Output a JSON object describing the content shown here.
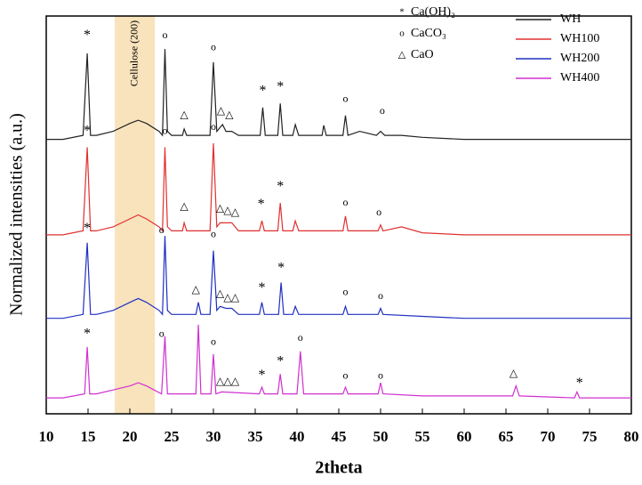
{
  "chart_data": {
    "type": "line",
    "xlabel": "2theta",
    "ylabel": "Normalized intensities (a.u.)",
    "xlim": [
      10,
      80
    ],
    "xticks": [
      10,
      15,
      20,
      25,
      30,
      35,
      40,
      45,
      50,
      55,
      60,
      65,
      70,
      75,
      80
    ],
    "ylim": [
      0,
      100
    ],
    "band": {
      "x0": 18.2,
      "x1": 23,
      "label": "Cellulose (200)",
      "color": "#f7deb0"
    },
    "phase_legend": [
      {
        "symbol": "*",
        "label": "Ca(OH)₂"
      },
      {
        "symbol": "o",
        "label": "CaCO₃"
      },
      {
        "symbol": "△",
        "label": "CaO"
      }
    ],
    "series": [
      {
        "name": "WH",
        "color": "#222222",
        "x": [
          10,
          12,
          14.4,
          14.9,
          15.3,
          16,
          18,
          20,
          21,
          22,
          23.5,
          23.9,
          24.2,
          24.5,
          25,
          26.3,
          26.5,
          26.8,
          28,
          29.6,
          30,
          30.4,
          30.8,
          31.1,
          31.5,
          32.2,
          33,
          35.6,
          35.9,
          36.2,
          37.7,
          38,
          38.3,
          39.5,
          39.8,
          40.2,
          43,
          43.2,
          43.5,
          45.5,
          45.8,
          46.1,
          47.5,
          49.5,
          50,
          50.5,
          52.5,
          55,
          60,
          65,
          70,
          75,
          80
        ],
        "values": [
          69,
          69,
          70,
          90.6,
          70,
          70,
          71,
          73,
          73.8,
          73,
          71,
          70,
          91.7,
          71,
          70,
          70,
          71.6,
          70,
          70,
          70,
          88.4,
          71,
          72,
          72.7,
          71,
          71,
          70,
          70,
          77,
          70,
          70,
          78,
          70,
          70,
          72.7,
          70,
          70,
          72.5,
          70,
          70,
          75,
          70,
          71,
          70,
          71,
          70,
          70,
          69.5,
          69,
          69,
          69,
          69,
          69
        ]
      },
      {
        "name": "WH100",
        "color": "#e03030",
        "x": [
          10,
          12,
          14.4,
          14.9,
          15.3,
          16,
          18,
          20,
          21,
          22,
          23.5,
          23.9,
          24.2,
          24.5,
          25,
          26.3,
          26.5,
          26.8,
          28,
          29.6,
          30,
          30.4,
          30.8,
          31.5,
          32.2,
          33,
          35.5,
          35.8,
          36.1,
          37.7,
          38,
          38.3,
          39.5,
          39.8,
          40.2,
          45.5,
          45.8,
          46.1,
          49.7,
          50,
          50.3,
          52.5,
          55,
          60,
          65,
          70,
          75,
          80
        ],
        "values": [
          45,
          45,
          46,
          67,
          46,
          46,
          47,
          49,
          50,
          49,
          47,
          46,
          67,
          47,
          46,
          46,
          48,
          46,
          46,
          46,
          68,
          47,
          48,
          48,
          48,
          46,
          46,
          48.5,
          46,
          46,
          53,
          46,
          46,
          48.5,
          46,
          46,
          49.7,
          46,
          46,
          47.5,
          46,
          47,
          45.5,
          45,
          45,
          45,
          45,
          45
        ]
      },
      {
        "name": "WH200",
        "color": "#2030c0",
        "x": [
          10,
          12,
          14.4,
          14.9,
          15.3,
          16,
          18,
          20,
          21,
          22,
          23.5,
          23.9,
          24.2,
          24.5,
          25,
          27.9,
          28.2,
          28.5,
          29.6,
          30,
          30.4,
          30.8,
          31.5,
          32.2,
          33,
          35.5,
          35.8,
          36.1,
          37.8,
          38.1,
          38.4,
          39.5,
          39.8,
          40.2,
          45.5,
          45.8,
          46.1,
          49.7,
          50,
          50.3,
          55,
          60,
          65,
          70,
          75,
          80
        ],
        "values": [
          24,
          24,
          25,
          43,
          25,
          25,
          26,
          28,
          29,
          28,
          26,
          25,
          44.7,
          26,
          25,
          25,
          28,
          25,
          25,
          41,
          26,
          27,
          26.5,
          26.5,
          25,
          25,
          28,
          25,
          25,
          33,
          25,
          25,
          27,
          25,
          25,
          27,
          25,
          25,
          26.5,
          25,
          24.5,
          24,
          24,
          24,
          24,
          24
        ]
      },
      {
        "name": "WH400",
        "color": "#d030d0",
        "x": [
          10,
          12,
          14.6,
          14.9,
          15.2,
          16,
          18,
          20,
          21,
          22,
          23.8,
          24.2,
          24.5,
          27.9,
          28.2,
          28.5,
          29.7,
          30,
          30.3,
          31,
          35.5,
          35.8,
          36.1,
          37.7,
          38,
          38.3,
          40,
          40.4,
          40.8,
          45.5,
          45.8,
          46.1,
          49.7,
          50,
          50.3,
          55,
          60,
          65.8,
          66.2,
          66.6,
          73.2,
          73.5,
          73.8,
          80
        ],
        "values": [
          4,
          4,
          5,
          16.8,
          5,
          5,
          6,
          7,
          7.8,
          7,
          5,
          19.5,
          5,
          5,
          22.4,
          5,
          5,
          15,
          5,
          5.5,
          5,
          6.7,
          5,
          5,
          10,
          5,
          5,
          15.7,
          5,
          5,
          6.7,
          5,
          5,
          7.8,
          5,
          4.5,
          4.5,
          4.5,
          7,
          4.5,
          4,
          5.5,
          4,
          4
        ]
      }
    ],
    "annotations": [
      {
        "text": "*",
        "x": 14.9,
        "y": 95
      },
      {
        "text": "o",
        "x": 24.2,
        "y": 95
      },
      {
        "text": "△",
        "x": 26.5,
        "y": 75
      },
      {
        "text": "o",
        "x": 30,
        "y": 92
      },
      {
        "text": "△",
        "x": 30.9,
        "y": 76
      },
      {
        "text": "△",
        "x": 31.9,
        "y": 75
      },
      {
        "text": "*",
        "x": 35.9,
        "y": 81
      },
      {
        "text": "*",
        "x": 38,
        "y": 82
      },
      {
        "text": "o",
        "x": 45.8,
        "y": 79
      },
      {
        "text": "o",
        "x": 50.2,
        "y": 76
      },
      {
        "text": "*",
        "x": 14.9,
        "y": 71
      },
      {
        "text": "o",
        "x": 24.2,
        "y": 71
      },
      {
        "text": "△",
        "x": 26.5,
        "y": 52
      },
      {
        "text": "o",
        "x": 30,
        "y": 72
      },
      {
        "text": "△",
        "x": 30.8,
        "y": 51.5
      },
      {
        "text": "△",
        "x": 31.7,
        "y": 51
      },
      {
        "text": "△",
        "x": 32.6,
        "y": 50.5
      },
      {
        "text": "*",
        "x": 35.7,
        "y": 52.5
      },
      {
        "text": "*",
        "x": 38,
        "y": 57
      },
      {
        "text": "o",
        "x": 45.8,
        "y": 53
      },
      {
        "text": "o",
        "x": 49.8,
        "y": 50.5
      },
      {
        "text": "*",
        "x": 14.9,
        "y": 46.5
      },
      {
        "text": "o",
        "x": 23.8,
        "y": 46
      },
      {
        "text": "△",
        "x": 27.9,
        "y": 31
      },
      {
        "text": "o",
        "x": 30,
        "y": 45
      },
      {
        "text": "△",
        "x": 30.8,
        "y": 30
      },
      {
        "text": "△",
        "x": 31.7,
        "y": 29
      },
      {
        "text": "△",
        "x": 32.6,
        "y": 29
      },
      {
        "text": "*",
        "x": 35.8,
        "y": 31.5
      },
      {
        "text": "*",
        "x": 38.1,
        "y": 36.5
      },
      {
        "text": "o",
        "x": 45.8,
        "y": 30.5
      },
      {
        "text": "o",
        "x": 50,
        "y": 29.5
      },
      {
        "text": "*",
        "x": 14.9,
        "y": 20
      },
      {
        "text": "o",
        "x": 23.8,
        "y": 20
      },
      {
        "text": "o",
        "x": 30,
        "y": 18
      },
      {
        "text": "△",
        "x": 30.8,
        "y": 8
      },
      {
        "text": "△",
        "x": 31.7,
        "y": 8
      },
      {
        "text": "△",
        "x": 32.6,
        "y": 8
      },
      {
        "text": "*",
        "x": 35.8,
        "y": 9.5
      },
      {
        "text": "*",
        "x": 38,
        "y": 13
      },
      {
        "text": "o",
        "x": 40.4,
        "y": 19
      },
      {
        "text": "o",
        "x": 45.8,
        "y": 9.5
      },
      {
        "text": "o",
        "x": 50,
        "y": 9.5
      },
      {
        "text": "△",
        "x": 65.9,
        "y": 10
      },
      {
        "text": "*",
        "x": 73.8,
        "y": 7.5
      }
    ]
  }
}
